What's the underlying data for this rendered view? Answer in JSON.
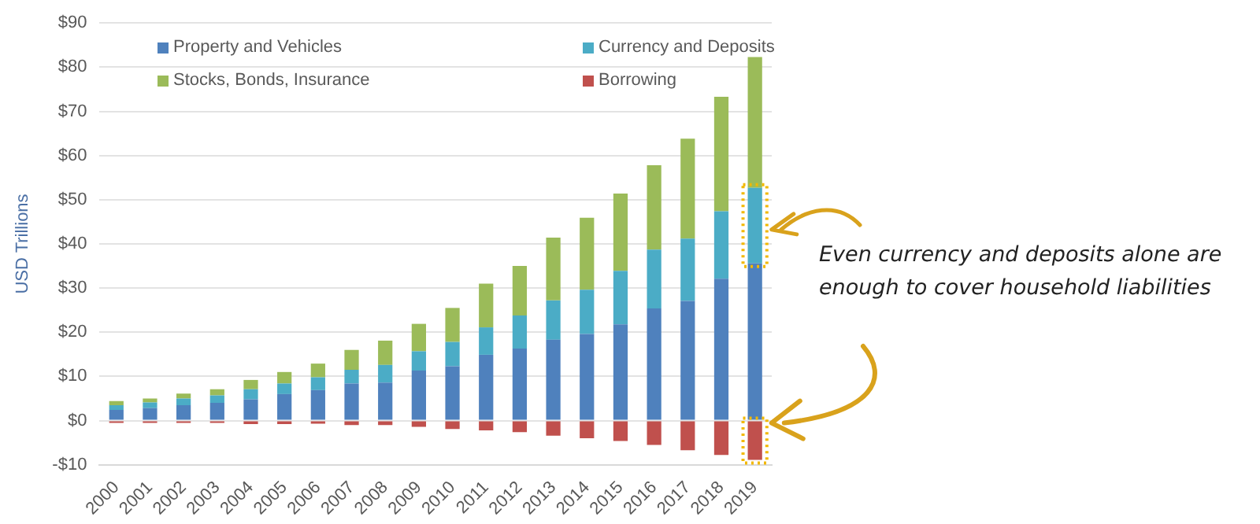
{
  "chart_data": {
    "type": "bar",
    "stacked": true,
    "ylabel": "USD Trillions",
    "categories": [
      "2000",
      "2001",
      "2002",
      "2003",
      "2004",
      "2005",
      "2006",
      "2007",
      "2008",
      "2009",
      "2010",
      "2011",
      "2012",
      "2013",
      "2014",
      "2015",
      "2016",
      "2017",
      "2018",
      "2019"
    ],
    "series": [
      {
        "name": "Property and Vehicles",
        "color": "#4f81bd",
        "values": [
          2.4,
          2.8,
          3.5,
          4.0,
          4.8,
          6.0,
          6.9,
          8.4,
          8.6,
          11.3,
          12.3,
          14.9,
          16.3,
          18.3,
          19.6,
          21.8,
          25.4,
          27.1,
          32.1,
          35.6
        ]
      },
      {
        "name": "Currency and Deposits",
        "color": "#4bacc6",
        "values": [
          1.1,
          1.3,
          1.5,
          1.7,
          2.3,
          2.4,
          2.9,
          3.1,
          4.0,
          4.4,
          5.5,
          6.2,
          7.5,
          8.9,
          10.0,
          12.1,
          13.3,
          14.1,
          15.3,
          17.1
        ]
      },
      {
        "name": "Stocks, Bonds, Insurance",
        "color": "#9bbb59",
        "values": [
          0.9,
          0.9,
          1.1,
          1.4,
          2.1,
          2.6,
          3.1,
          4.5,
          5.5,
          6.2,
          7.7,
          9.9,
          11.2,
          14.2,
          16.3,
          17.5,
          19.1,
          22.6,
          25.9,
          29.6
        ]
      },
      {
        "name": "Borrowing",
        "color": "#c0504d",
        "values": [
          -0.5,
          -0.5,
          -0.5,
          -0.5,
          -0.8,
          -0.8,
          -0.7,
          -1.0,
          -1.0,
          -1.4,
          -1.9,
          -2.2,
          -2.6,
          -3.4,
          -4.0,
          -4.6,
          -5.5,
          -6.7,
          -7.8,
          -8.9
        ]
      }
    ],
    "ylim": [
      -10,
      90
    ],
    "yticks": [
      {
        "value": -10,
        "label": "-$10"
      },
      {
        "value": 0,
        "label": "$0"
      },
      {
        "value": 10,
        "label": "$10"
      },
      {
        "value": 20,
        "label": "$20"
      },
      {
        "value": 30,
        "label": "$30"
      },
      {
        "value": 40,
        "label": "$40"
      },
      {
        "value": 50,
        "label": "$50"
      },
      {
        "value": 60,
        "label": "$60"
      },
      {
        "value": 70,
        "label": "$70"
      },
      {
        "value": 80,
        "label": "$80"
      },
      {
        "value": 90,
        "label": "$90"
      }
    ],
    "grid": "y",
    "legend": "top",
    "annotations": [
      "Even currency and deposits alone are enough to cover household liabilities"
    ]
  }
}
